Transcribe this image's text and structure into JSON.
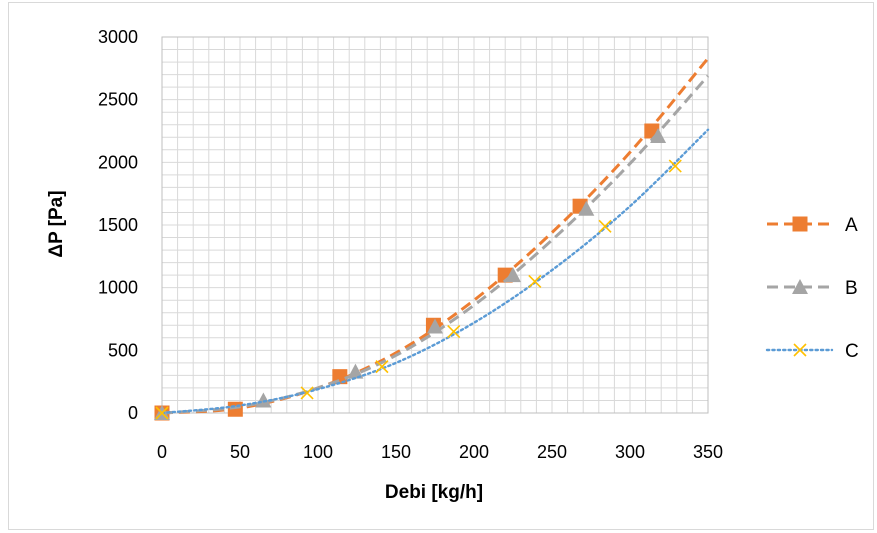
{
  "chart_data": {
    "type": "line",
    "title": "",
    "xlabel": "Debi [kg/h]",
    "ylabel": "ΔP [Pa]",
    "xlim": [
      0,
      350
    ],
    "ylim": [
      0,
      3000
    ],
    "x_ticks": [
      0,
      50,
      100,
      150,
      200,
      250,
      300,
      350
    ],
    "y_ticks": [
      0,
      500,
      1000,
      1500,
      2000,
      2500,
      3000
    ],
    "grid": true,
    "legend_position": "right",
    "series": [
      {
        "name": "A",
        "color": "#ED7D31",
        "line_style": "dashed",
        "marker": "square",
        "trend": [
          [
            0,
            0
          ],
          [
            50,
            40
          ],
          [
            100,
            200
          ],
          [
            150,
            480
          ],
          [
            200,
            900
          ],
          [
            250,
            1440
          ],
          [
            300,
            2080
          ],
          [
            350,
            2830
          ]
        ],
        "points": [
          [
            0,
            0
          ],
          [
            47,
            30
          ],
          [
            114,
            290
          ],
          [
            174,
            700
          ],
          [
            220,
            1100
          ],
          [
            268,
            1650
          ],
          [
            314,
            2250
          ]
        ]
      },
      {
        "name": "B",
        "color": "#A5A5A5",
        "line_style": "dashed",
        "marker": "triangle",
        "trend": [
          [
            0,
            0
          ],
          [
            50,
            50
          ],
          [
            100,
            200
          ],
          [
            150,
            460
          ],
          [
            200,
            860
          ],
          [
            250,
            1380
          ],
          [
            300,
            1990
          ],
          [
            350,
            2690
          ]
        ],
        "points": [
          [
            0,
            0
          ],
          [
            65,
            100
          ],
          [
            124,
            330
          ],
          [
            175,
            690
          ],
          [
            225,
            1100
          ],
          [
            272,
            1630
          ],
          [
            318,
            2210
          ]
        ]
      },
      {
        "name": "C",
        "color": "#5B9BD5",
        "line_style": "dotted",
        "marker": "x",
        "marker_color": "#FFC000",
        "trend": [
          [
            0,
            0
          ],
          [
            50,
            60
          ],
          [
            100,
            190
          ],
          [
            150,
            400
          ],
          [
            200,
            720
          ],
          [
            250,
            1140
          ],
          [
            300,
            1650
          ],
          [
            350,
            2260
          ]
        ],
        "points": [
          [
            0,
            0
          ],
          [
            93,
            160
          ],
          [
            141,
            370
          ],
          [
            187,
            650
          ],
          [
            239,
            1050
          ],
          [
            284,
            1490
          ],
          [
            329,
            1970
          ]
        ]
      }
    ]
  }
}
